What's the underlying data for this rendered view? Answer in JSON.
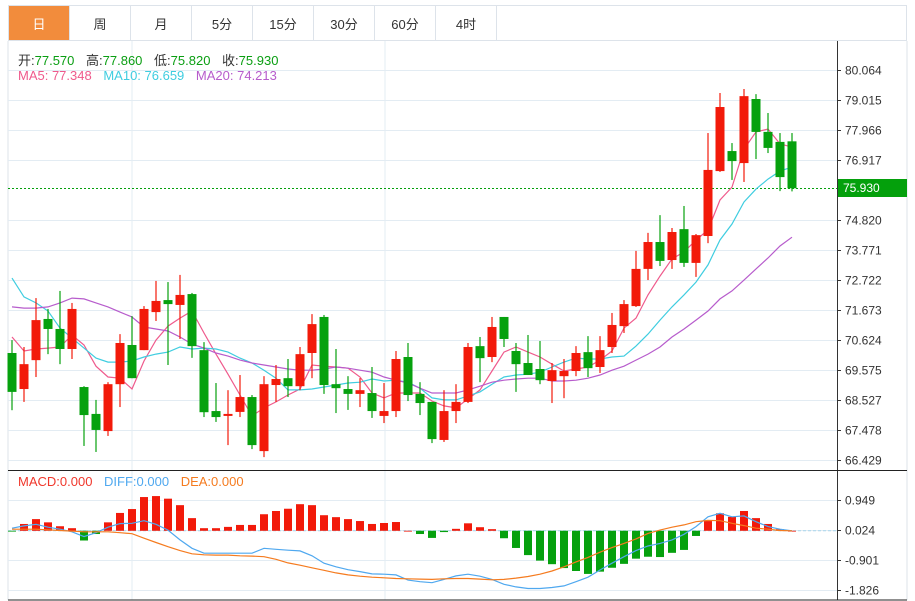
{
  "tabs": [
    {
      "label": "日",
      "active": true
    },
    {
      "label": "周",
      "active": false
    },
    {
      "label": "月",
      "active": false
    },
    {
      "label": "5分",
      "active": false
    },
    {
      "label": "15分",
      "active": false
    },
    {
      "label": "30分",
      "active": false
    },
    {
      "label": "60分",
      "active": false
    },
    {
      "label": "4时",
      "active": false
    }
  ],
  "ohlc": {
    "open_label": "开:",
    "open": "77.570",
    "high_label": "高:",
    "high": "77.860",
    "low_label": "低:",
    "low": "75.820",
    "close_label": "收:",
    "close": "75.930"
  },
  "ma": {
    "ma5": "MA5: 77.348",
    "ma10": "MA10: 76.659",
    "ma20": "MA20: 74.213"
  },
  "macd_legend": {
    "macd": "MACD:0.000",
    "diff": "DIFF:0.000",
    "dea": "DEA:0.000"
  },
  "current_price": "75.930",
  "colors": {
    "up": "#f21a0a",
    "down": "#06a10e",
    "ma5": "#ef5a8c",
    "ma10": "#3fcde0",
    "ma20": "#b75ccc",
    "macd": "#f0372b",
    "diff": "#4fa8ef",
    "dea": "#f57b1f",
    "active_tab": "#f28c3c",
    "price_tag": "#04a00c"
  },
  "chart_data": [
    {
      "type": "candlestick",
      "ylim": [
        66.429,
        80.064
      ],
      "y_ticks": [
        "80.064",
        "79.015",
        "77.966",
        "76.917",
        "75.930",
        "74.820",
        "73.771",
        "72.722",
        "71.673",
        "70.624",
        "69.575",
        "68.527",
        "67.478",
        "66.429"
      ],
      "grid": true,
      "candles_ohlc": [
        [
          70.17,
          70.62,
          68.17,
          68.81
        ],
        [
          68.91,
          70.38,
          68.46,
          69.78
        ],
        [
          69.92,
          72.09,
          69.33,
          71.32
        ],
        [
          71.36,
          71.71,
          70.13,
          71.01
        ],
        [
          71.01,
          72.34,
          69.78,
          70.31
        ],
        [
          70.31,
          71.92,
          69.96,
          71.71
        ],
        [
          68.98,
          69.01,
          66.92,
          68.0
        ],
        [
          68.04,
          68.53,
          66.71,
          67.48
        ],
        [
          67.44,
          69.15,
          67.27,
          69.08
        ],
        [
          69.08,
          70.83,
          68.28,
          70.52
        ],
        [
          70.45,
          71.46,
          69.29,
          69.29
        ],
        [
          70.27,
          71.81,
          70.27,
          71.71
        ],
        [
          71.6,
          72.69,
          71.29,
          71.99
        ],
        [
          72.02,
          72.65,
          69.75,
          71.88
        ],
        [
          71.85,
          72.9,
          70.66,
          72.2
        ],
        [
          72.23,
          72.27,
          70.0,
          70.41
        ],
        [
          70.27,
          70.55,
          67.93,
          68.1
        ],
        [
          68.14,
          69.12,
          67.76,
          67.93
        ],
        [
          67.97,
          68.87,
          66.95,
          68.04
        ],
        [
          68.11,
          69.4,
          67.93,
          68.63
        ],
        [
          68.63,
          68.7,
          66.81,
          66.95
        ],
        [
          66.74,
          69.36,
          66.53,
          69.08
        ],
        [
          69.05,
          69.75,
          68.46,
          69.26
        ],
        [
          69.29,
          69.96,
          68.63,
          69.01
        ],
        [
          69.01,
          70.38,
          68.87,
          70.13
        ],
        [
          70.17,
          71.53,
          69.29,
          71.18
        ],
        [
          71.43,
          71.5,
          68.74,
          69.05
        ],
        [
          69.08,
          70.31,
          68.07,
          68.94
        ],
        [
          68.91,
          69.36,
          68.18,
          68.74
        ],
        [
          68.74,
          69.29,
          68.28,
          68.87
        ],
        [
          68.77,
          69.68,
          67.9,
          68.14
        ],
        [
          67.97,
          69.12,
          67.72,
          68.14
        ],
        [
          68.14,
          70.24,
          67.93,
          69.96
        ],
        [
          70.03,
          70.52,
          68.49,
          68.7
        ],
        [
          68.74,
          69.15,
          68.0,
          68.42
        ],
        [
          68.46,
          68.46,
          67.02,
          67.16
        ],
        [
          67.13,
          68.87,
          67.06,
          68.14
        ],
        [
          68.14,
          69.08,
          67.72,
          68.46
        ],
        [
          68.46,
          70.52,
          68.42,
          70.38
        ],
        [
          70.41,
          70.73,
          69.15,
          69.99
        ],
        [
          70.03,
          71.43,
          69.85,
          71.08
        ],
        [
          71.43,
          71.43,
          70.38,
          70.66
        ],
        [
          70.24,
          70.52,
          68.81,
          69.78
        ],
        [
          69.82,
          70.8,
          69.4,
          69.4
        ],
        [
          69.61,
          70.59,
          69.08,
          69.22
        ],
        [
          69.19,
          69.82,
          68.42,
          69.57
        ],
        [
          69.36,
          69.96,
          68.59,
          69.54
        ],
        [
          69.54,
          70.41,
          69.36,
          70.17
        ],
        [
          70.2,
          70.76,
          69.33,
          69.64
        ],
        [
          69.68,
          70.76,
          69.47,
          70.27
        ],
        [
          70.38,
          71.57,
          70.17,
          71.15
        ],
        [
          71.11,
          72.02,
          70.87,
          71.88
        ],
        [
          71.81,
          73.74,
          71.78,
          73.11
        ],
        [
          73.11,
          74.37,
          72.72,
          74.05
        ],
        [
          74.05,
          74.99,
          73.21,
          73.39
        ],
        [
          73.42,
          74.54,
          73.11,
          74.4
        ],
        [
          74.5,
          75.31,
          73.18,
          73.32
        ],
        [
          73.32,
          74.33,
          72.83,
          74.29
        ],
        [
          74.26,
          77.86,
          74.01,
          76.57
        ],
        [
          76.53,
          79.26,
          76.5,
          78.77
        ],
        [
          77.23,
          77.51,
          76.22,
          76.88
        ],
        [
          76.81,
          79.4,
          76.15,
          79.15
        ],
        [
          79.05,
          79.22,
          76.95,
          77.9
        ],
        [
          77.9,
          78.56,
          77.16,
          77.34
        ],
        [
          77.55,
          77.86,
          75.83,
          76.32
        ],
        [
          77.57,
          77.86,
          75.82,
          75.93
        ]
      ],
      "series": [
        {
          "name": "MA5",
          "values": [
            70.73,
            70.24,
            70.31,
            70.34,
            70.38,
            70.8,
            70.45,
            69.71,
            69.33,
            69.29,
            68.91,
            69.89,
            70.62,
            71.11,
            71.39,
            71.64,
            70.87,
            70.13,
            69.43,
            68.7,
            67.97,
            68.25,
            68.46,
            68.7,
            68.91,
            69.75,
            69.71,
            69.68,
            69.64,
            69.33,
            68.77,
            68.6,
            68.77,
            68.77,
            68.77,
            68.49,
            68.32,
            68.25,
            68.56,
            68.88,
            69.54,
            70.2,
            70.38,
            70.2,
            70.03,
            69.78,
            69.54,
            69.61,
            69.68,
            69.92,
            70.24,
            71.04,
            71.39,
            72.2,
            72.86,
            73.46,
            73.7,
            74.12,
            74.47,
            75.52,
            75.97,
            77.3,
            77.9,
            78.0,
            77.48,
            77.37
          ]
        },
        {
          "name": "MA10",
          "values": [
            72.79,
            72.13,
            71.92,
            71.64,
            71.04,
            70.69,
            70.34,
            69.99,
            69.85,
            69.85,
            69.89,
            70.03,
            70.13,
            70.2,
            70.38,
            70.31,
            70.34,
            70.31,
            70.2,
            69.99,
            69.82,
            69.57,
            69.29,
            68.88,
            68.88,
            68.91,
            68.98,
            69.05,
            69.12,
            69.15,
            69.26,
            69.19,
            69.22,
            69.15,
            68.94,
            68.6,
            68.53,
            68.53,
            68.67,
            68.81,
            69.08,
            69.33,
            69.4,
            69.43,
            69.5,
            69.68,
            69.85,
            69.99,
            69.96,
            69.96,
            70.03,
            70.06,
            70.41,
            70.83,
            71.32,
            71.78,
            72.2,
            72.65,
            73.25,
            74.12,
            74.68,
            75.45,
            75.9,
            76.25,
            76.53,
            76.67
          ]
        },
        {
          "name": "MA20",
          "values": [
            71.78,
            71.74,
            71.74,
            71.78,
            71.92,
            72.09,
            72.06,
            71.92,
            71.78,
            71.6,
            71.43,
            71.08,
            71.01,
            70.94,
            70.73,
            70.48,
            70.34,
            70.17,
            70.06,
            69.92,
            69.82,
            69.75,
            69.68,
            69.61,
            69.57,
            69.57,
            69.61,
            69.68,
            69.64,
            69.57,
            69.5,
            69.33,
            69.22,
            69.12,
            68.94,
            68.77,
            68.77,
            68.77,
            68.88,
            69.01,
            69.15,
            69.22,
            69.26,
            69.29,
            69.29,
            69.19,
            69.19,
            69.22,
            69.29,
            69.4,
            69.57,
            69.71,
            69.92,
            70.13,
            70.38,
            70.73,
            71.01,
            71.32,
            71.64,
            72.06,
            72.34,
            72.72,
            73.11,
            73.49,
            73.91,
            74.22
          ]
        }
      ]
    },
    {
      "type": "bar+line",
      "ylim": [
        -1.826,
        0.949
      ],
      "y_ticks": [
        "0.949",
        "0.024",
        "-0.901",
        "-1.826"
      ],
      "grid": true,
      "macd_histogram": [
        -0.01,
        0.21,
        0.36,
        0.26,
        0.14,
        0.08,
        -0.3,
        -0.1,
        0.26,
        0.55,
        0.67,
        1.04,
        1.07,
        0.99,
        0.79,
        0.39,
        0.08,
        0.08,
        0.12,
        0.18,
        0.18,
        0.51,
        0.61,
        0.68,
        0.82,
        0.79,
        0.48,
        0.42,
        0.36,
        0.3,
        0.21,
        0.24,
        0.27,
        0.0,
        -0.1,
        -0.22,
        -0.04,
        0.06,
        0.23,
        0.11,
        0.05,
        -0.23,
        -0.53,
        -0.75,
        -0.92,
        -1.03,
        -1.15,
        -1.24,
        -1.33,
        -1.26,
        -1.14,
        -1.02,
        -0.86,
        -0.8,
        -0.81,
        -0.68,
        -0.59,
        -0.16,
        0.3,
        0.54,
        0.43,
        0.61,
        0.39,
        0.21,
        0.05,
        0.0
      ],
      "series": [
        {
          "name": "DIFF",
          "values": [
            0.08,
            0.15,
            0.2,
            0.11,
            0.05,
            -0.03,
            -0.18,
            -0.06,
            0.11,
            0.22,
            0.23,
            0.31,
            0.2,
            0.02,
            -0.28,
            -0.54,
            -0.69,
            -0.69,
            -0.69,
            -0.69,
            -0.69,
            -0.54,
            -0.57,
            -0.6,
            -0.62,
            -0.77,
            -1.0,
            -1.11,
            -1.2,
            -1.26,
            -1.33,
            -1.34,
            -1.36,
            -1.52,
            -1.57,
            -1.6,
            -1.5,
            -1.39,
            -1.34,
            -1.4,
            -1.5,
            -1.65,
            -1.73,
            -1.78,
            -1.78,
            -1.75,
            -1.7,
            -1.57,
            -1.43,
            -1.21,
            -1.0,
            -0.8,
            -0.61,
            -0.47,
            -0.39,
            -0.28,
            -0.11,
            0.13,
            0.43,
            0.54,
            0.43,
            0.46,
            0.28,
            0.13,
            0.05,
            0.0
          ]
        },
        {
          "name": "DEA",
          "values": [
            0.05,
            0.05,
            0.05,
            0.03,
            0.01,
            -0.01,
            -0.03,
            -0.03,
            -0.03,
            -0.06,
            -0.09,
            -0.23,
            -0.36,
            -0.49,
            -0.61,
            -0.71,
            -0.74,
            -0.75,
            -0.75,
            -0.77,
            -0.78,
            -0.8,
            -0.88,
            -0.99,
            -1.06,
            -1.14,
            -1.22,
            -1.3,
            -1.36,
            -1.4,
            -1.43,
            -1.45,
            -1.47,
            -1.48,
            -1.49,
            -1.5,
            -1.48,
            -1.47,
            -1.47,
            -1.49,
            -1.51,
            -1.5,
            -1.46,
            -1.41,
            -1.34,
            -1.24,
            -1.11,
            -0.96,
            -0.82,
            -0.66,
            -0.52,
            -0.39,
            -0.25,
            -0.08,
            0.02,
            0.11,
            0.18,
            0.28,
            0.32,
            0.31,
            0.23,
            0.16,
            0.08,
            0.05,
            0.01,
            0.0
          ]
        }
      ]
    }
  ]
}
